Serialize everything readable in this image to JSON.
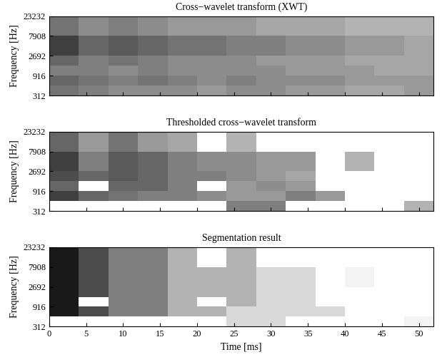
{
  "chart_data": [
    {
      "type": "heatmap",
      "title": "Cross−wavelet transform (XWT)",
      "ylabel": "Frequency [Hz]",
      "log": "y",
      "tick_labels": "y",
      "xlim": [
        0,
        52
      ],
      "xticks": [
        0,
        5,
        10,
        15,
        20,
        25,
        30,
        35,
        40,
        45,
        50
      ],
      "ylim": [
        312,
        23232
      ],
      "yticks": [
        312,
        916,
        2692,
        7908,
        23232
      ],
      "x_edges": [
        0,
        4,
        8,
        12,
        16,
        20,
        24,
        28,
        32,
        36,
        40,
        44,
        48,
        52
      ],
      "y_edges": [
        312,
        540,
        916,
        1570,
        2692,
        7908,
        23232
      ],
      "color_range": [
        0,
        1
      ],
      "cells": [
        [
          0.55,
          0.5,
          0.45,
          0.45,
          0.45,
          0.4,
          0.45,
          0.45,
          0.4,
          0.4,
          0.35,
          0.35,
          0.4
        ],
        [
          0.6,
          0.55,
          0.5,
          0.55,
          0.5,
          0.45,
          0.5,
          0.45,
          0.45,
          0.45,
          0.4,
          0.4,
          0.4
        ],
        [
          0.5,
          0.5,
          0.45,
          0.5,
          0.45,
          0.45,
          0.45,
          0.45,
          0.4,
          0.4,
          0.4,
          0.35,
          0.35
        ],
        [
          0.6,
          0.5,
          0.55,
          0.5,
          0.45,
          0.45,
          0.45,
          0.4,
          0.4,
          0.4,
          0.35,
          0.35,
          0.35
        ],
        [
          0.75,
          0.6,
          0.65,
          0.6,
          0.55,
          0.55,
          0.5,
          0.5,
          0.45,
          0.45,
          0.4,
          0.4,
          0.35
        ],
        [
          0.55,
          0.45,
          0.5,
          0.45,
          0.4,
          0.4,
          0.4,
          0.35,
          0.35,
          0.35,
          0.3,
          0.3,
          0.3
        ]
      ]
    },
    {
      "type": "heatmap",
      "title": "Thresholded cross−wavelet transform",
      "ylabel": "Frequency [Hz]",
      "log": "y",
      "tick_labels": "y",
      "xlim": [
        0,
        52
      ],
      "xticks": [
        0,
        5,
        10,
        15,
        20,
        25,
        30,
        35,
        40,
        45,
        50
      ],
      "ylim": [
        312,
        23232
      ],
      "yticks": [
        312,
        916,
        2692,
        7908,
        23232
      ],
      "x_edges": [
        0,
        4,
        8,
        12,
        16,
        20,
        24,
        28,
        32,
        36,
        40,
        44,
        48,
        52
      ],
      "y_edges": [
        312,
        540,
        916,
        1570,
        2692,
        7908,
        23232
      ],
      "color_range": [
        0,
        1
      ],
      "cells": [
        [
          0,
          0,
          0,
          0,
          0,
          0,
          0.5,
          0.5,
          0,
          0,
          0,
          0,
          0.3
        ],
        [
          0.75,
          0.6,
          0.55,
          0.5,
          0.5,
          0.45,
          0.4,
          0.4,
          0.5,
          0.4,
          0,
          0,
          0
        ],
        [
          0.6,
          0,
          0.6,
          0.6,
          0.5,
          0,
          0.4,
          0.45,
          0.4,
          0,
          0,
          0,
          0
        ],
        [
          0.7,
          0.6,
          0.65,
          0.6,
          0.5,
          0.5,
          0.45,
          0.4,
          0.35,
          0,
          0,
          0,
          0
        ],
        [
          0.75,
          0.5,
          0.65,
          0.6,
          0.5,
          0.45,
          0.45,
          0.4,
          0.4,
          0,
          0.3,
          0,
          0
        ],
        [
          0.6,
          0.4,
          0.55,
          0.4,
          0.35,
          0,
          0.3,
          0,
          0,
          0,
          0,
          0,
          0
        ]
      ]
    },
    {
      "type": "heatmap",
      "title": "Segmentation result",
      "xlabel": "Time [ms]",
      "ylabel": "Frequency [Hz]",
      "log": "y",
      "xlim": [
        0,
        52
      ],
      "xticks": [
        0,
        5,
        10,
        15,
        20,
        25,
        30,
        35,
        40,
        45,
        50
      ],
      "ylim": [
        312,
        23232
      ],
      "yticks": [
        312,
        916,
        2692,
        7908,
        23232
      ],
      "x_edges": [
        0,
        4,
        8,
        12,
        16,
        20,
        24,
        28,
        32,
        36,
        40,
        44,
        48,
        52
      ],
      "y_edges": [
        312,
        540,
        916,
        1570,
        2692,
        7908,
        23232
      ],
      "color_range": [
        0,
        1
      ],
      "cells": [
        [
          0,
          0,
          0,
          0,
          0,
          0,
          0.15,
          0.15,
          0,
          0,
          0,
          0,
          0.05
        ],
        [
          0.9,
          0.7,
          0.5,
          0.5,
          0.3,
          0.3,
          0.15,
          0.15,
          0.15,
          0.15,
          0,
          0,
          0
        ],
        [
          0.9,
          0,
          0.5,
          0.5,
          0.3,
          0,
          0.3,
          0.15,
          0.15,
          0,
          0,
          0,
          0
        ],
        [
          0.9,
          0.7,
          0.5,
          0.5,
          0.3,
          0.3,
          0.3,
          0.15,
          0.15,
          0,
          0,
          0,
          0
        ],
        [
          0.9,
          0.7,
          0.5,
          0.5,
          0.3,
          0.3,
          0.3,
          0.15,
          0.15,
          0,
          0.05,
          0,
          0
        ],
        [
          0.9,
          0.7,
          0.5,
          0.5,
          0.3,
          0,
          0.3,
          0,
          0,
          0,
          0,
          0,
          0
        ]
      ]
    }
  ]
}
